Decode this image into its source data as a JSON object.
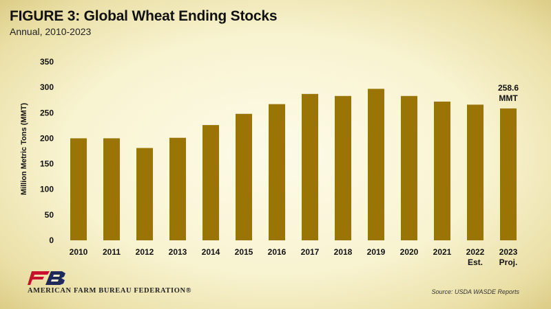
{
  "header": {
    "title": "FIGURE 3: Global Wheat Ending Stocks",
    "subtitle": "Annual, 2010-2023"
  },
  "chart_data": {
    "type": "bar",
    "categories": [
      "2010",
      "2011",
      "2012",
      "2013",
      "2014",
      "2015",
      "2016",
      "2017",
      "2018",
      "2019",
      "2020",
      "2021",
      "2022\nEst.",
      "2023\nProj."
    ],
    "values": [
      200,
      200,
      181,
      201,
      226,
      248,
      267,
      287,
      283,
      297,
      283,
      272,
      266,
      258.6
    ],
    "ylabel": "Million Metric Tons (MMT)",
    "xlabel": "",
    "ylim": [
      0,
      350
    ],
    "yticks": [
      0,
      50,
      100,
      150,
      200,
      250,
      300,
      350
    ],
    "grid": false,
    "bar_color": "#9a7405",
    "annotations": [
      {
        "category": "2023\nProj.",
        "text": [
          "258.6",
          "MMT"
        ]
      }
    ]
  },
  "footer": {
    "org_name": "AMERICAN FARM BUREAU FEDERATION®",
    "source": "Source: USDA WASDE Reports"
  },
  "colors": {
    "bar": "#9a7405",
    "logo_red": "#c8102e",
    "logo_navy": "#1f2a5a"
  }
}
